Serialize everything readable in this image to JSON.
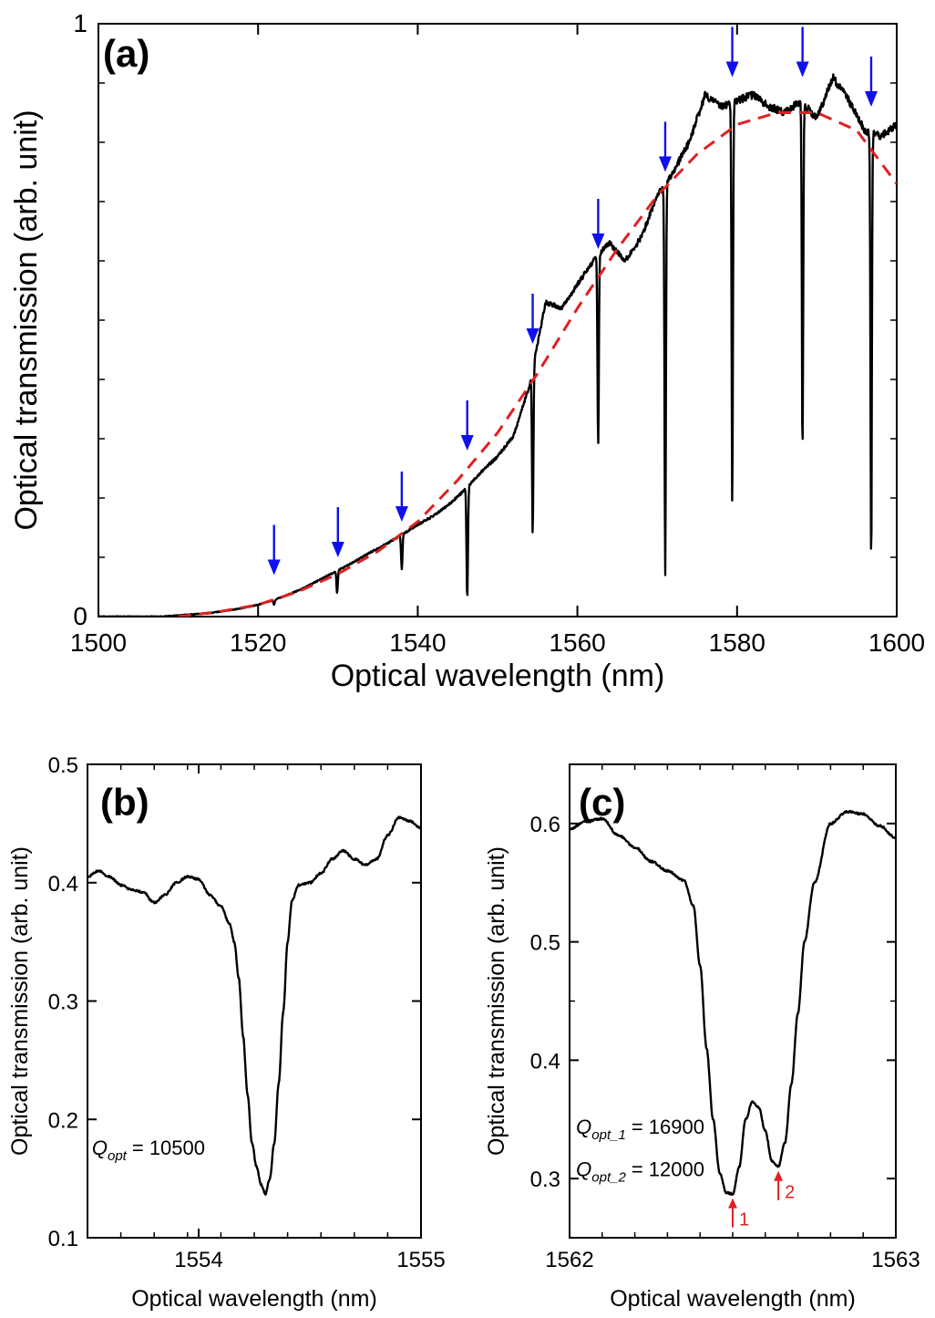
{
  "chart_data": [
    {
      "panel": "(a)",
      "type": "line",
      "xlabel": "Optical wavelength (nm)",
      "ylabel": "Optical transmission (arb. unit)",
      "xlim": [
        1500,
        1600
      ],
      "ylim": [
        0,
        1
      ],
      "x_ticks": [
        1500,
        1520,
        1540,
        1560,
        1580,
        1600
      ],
      "y_ticks": [
        0,
        1
      ],
      "grid": false,
      "series": [
        {
          "color": "#000000",
          "style": "solid",
          "x": [
            1500,
            1505,
            1508,
            1510,
            1512,
            1514,
            1516,
            1518,
            1520,
            1522,
            1524,
            1526,
            1528,
            1530,
            1532,
            1534,
            1536,
            1538,
            1540,
            1542,
            1544,
            1546,
            1548,
            1550,
            1552,
            1554,
            1556,
            1558,
            1560,
            1562,
            1564,
            1566,
            1568,
            1570,
            1572,
            1574,
            1576,
            1578,
            1580,
            1582,
            1584,
            1586,
            1588,
            1590,
            1592,
            1594,
            1596,
            1598,
            1600
          ],
          "y": [
            0.0,
            0.0,
            0.0,
            0.002,
            0.004,
            0.006,
            0.01,
            0.014,
            0.02,
            0.028,
            0.038,
            0.05,
            0.064,
            0.078,
            0.092,
            0.108,
            0.122,
            0.138,
            0.155,
            0.17,
            0.19,
            0.215,
            0.245,
            0.27,
            0.305,
            0.39,
            0.53,
            0.52,
            0.56,
            0.6,
            0.63,
            0.6,
            0.64,
            0.71,
            0.75,
            0.8,
            0.88,
            0.86,
            0.87,
            0.88,
            0.86,
            0.85,
            0.87,
            0.84,
            0.91,
            0.87,
            0.82,
            0.81,
            0.83
          ]
        },
        {
          "color": "#e02020",
          "style": "dashed",
          "x": [
            1510,
            1515,
            1520,
            1525,
            1530,
            1535,
            1540,
            1545,
            1550,
            1555,
            1560,
            1565,
            1570,
            1575,
            1580,
            1585,
            1590,
            1595,
            1600
          ],
          "y": [
            0.0,
            0.008,
            0.02,
            0.042,
            0.072,
            0.11,
            0.16,
            0.23,
            0.31,
            0.41,
            0.52,
            0.62,
            0.71,
            0.78,
            0.83,
            0.85,
            0.85,
            0.82,
            0.73
          ]
        }
      ],
      "dips": [
        {
          "x": 1522.0,
          "y": 0.02
        },
        {
          "x": 1529.9,
          "y": 0.04
        },
        {
          "x": 1538.0,
          "y": 0.08
        },
        {
          "x": 1546.2,
          "y": 0.03
        },
        {
          "x": 1554.4,
          "y": 0.14
        },
        {
          "x": 1562.6,
          "y": 0.29
        },
        {
          "x": 1571.0,
          "y": 0.07
        },
        {
          "x": 1579.4,
          "y": 0.19
        },
        {
          "x": 1588.2,
          "y": 0.28
        },
        {
          "x": 1596.8,
          "y": 0.09
        }
      ],
      "annotations": [
        {
          "type": "arrow",
          "color": "#1010ee",
          "x": 1522.0,
          "y_tip": 0.07
        },
        {
          "type": "arrow",
          "color": "#1010ee",
          "x": 1530.0,
          "y_tip": 0.1
        },
        {
          "type": "arrow",
          "color": "#1010ee",
          "x": 1538.0,
          "y_tip": 0.16
        },
        {
          "type": "arrow",
          "color": "#1010ee",
          "x": 1546.2,
          "y_tip": 0.28
        },
        {
          "type": "arrow",
          "color": "#1010ee",
          "x": 1554.4,
          "y_tip": 0.46
        },
        {
          "type": "arrow",
          "color": "#1010ee",
          "x": 1562.6,
          "y_tip": 0.62
        },
        {
          "type": "arrow",
          "color": "#1010ee",
          "x": 1571.0,
          "y_tip": 0.75
        },
        {
          "type": "arrow",
          "color": "#1010ee",
          "x": 1579.4,
          "y_tip": 0.91
        },
        {
          "type": "arrow",
          "color": "#1010ee",
          "x": 1588.2,
          "y_tip": 0.91
        },
        {
          "type": "arrow",
          "color": "#1010ee",
          "x": 1596.8,
          "y_tip": 0.86
        }
      ]
    },
    {
      "panel": "(b)",
      "type": "line",
      "xlabel": "Optical wavelength (nm)",
      "ylabel": "Optical transmission (arb. unit)",
      "xlim": [
        1553.5,
        1555
      ],
      "ylim": [
        0.1,
        0.5
      ],
      "x_ticks": [
        1554,
        1555
      ],
      "y_ticks": [
        0.1,
        0.2,
        0.3,
        0.4,
        0.5
      ],
      "grid": false,
      "series": [
        {
          "color": "#000000",
          "style": "solid",
          "x": [
            1553.5,
            1553.55,
            1553.6,
            1553.65,
            1553.7,
            1553.75,
            1553.8,
            1553.85,
            1553.9,
            1553.95,
            1554.0,
            1554.05,
            1554.1,
            1554.14,
            1554.16,
            1554.18,
            1554.2,
            1554.22,
            1554.24,
            1554.26,
            1554.28,
            1554.3,
            1554.32,
            1554.34,
            1554.36,
            1554.38,
            1554.4,
            1554.42,
            1554.45,
            1554.5,
            1554.55,
            1554.6,
            1554.65,
            1554.7,
            1554.75,
            1554.8,
            1554.85,
            1554.9,
            1554.95,
            1555.0
          ],
          "y": [
            0.405,
            0.41,
            0.405,
            0.398,
            0.394,
            0.392,
            0.383,
            0.39,
            0.4,
            0.405,
            0.403,
            0.39,
            0.38,
            0.365,
            0.35,
            0.32,
            0.27,
            0.22,
            0.18,
            0.16,
            0.145,
            0.137,
            0.15,
            0.18,
            0.23,
            0.29,
            0.35,
            0.385,
            0.398,
            0.4,
            0.408,
            0.42,
            0.427,
            0.42,
            0.415,
            0.42,
            0.44,
            0.455,
            0.452,
            0.446
          ]
        }
      ],
      "annotations": [
        {
          "type": "text",
          "label": "Q",
          "subscript": "opt",
          "value": "= 10500",
          "x": 1553.52,
          "y": 0.17
        }
      ]
    },
    {
      "panel": "(c)",
      "type": "line",
      "xlabel": "Optical wavelength (nm)",
      "ylabel": "Optical transmission (arb. unit)",
      "xlim": [
        1562,
        1563
      ],
      "ylim": [
        0.25,
        0.65
      ],
      "x_ticks": [
        1562,
        1563
      ],
      "y_ticks": [
        0.3,
        0.4,
        0.5,
        0.6
      ],
      "grid": false,
      "series": [
        {
          "color": "#000000",
          "style": "solid",
          "x": [
            1562.0,
            1562.05,
            1562.1,
            1562.15,
            1562.2,
            1562.25,
            1562.3,
            1562.35,
            1562.38,
            1562.4,
            1562.42,
            1562.44,
            1562.46,
            1562.48,
            1562.5,
            1562.52,
            1562.54,
            1562.56,
            1562.58,
            1562.6,
            1562.62,
            1562.64,
            1562.66,
            1562.68,
            1562.7,
            1562.72,
            1562.75,
            1562.8,
            1562.85,
            1562.9,
            1562.95,
            1563.0
          ],
          "y": [
            0.595,
            0.602,
            0.604,
            0.59,
            0.58,
            0.568,
            0.56,
            0.552,
            0.53,
            0.48,
            0.41,
            0.35,
            0.305,
            0.288,
            0.287,
            0.31,
            0.35,
            0.365,
            0.36,
            0.34,
            0.315,
            0.31,
            0.33,
            0.38,
            0.44,
            0.5,
            0.55,
            0.6,
            0.61,
            0.608,
            0.598,
            0.588
          ]
        }
      ],
      "annotations": [
        {
          "type": "text",
          "label": "Q",
          "subscript": "opt_1",
          "value": "= 16900",
          "x": 1562.02,
          "y": 0.338
        },
        {
          "type": "text",
          "label": "Q",
          "subscript": "opt_2",
          "value": "= 12000",
          "x": 1562.02,
          "y": 0.302
        },
        {
          "type": "arrow",
          "color": "#e02020",
          "label": "1",
          "x": 1562.5,
          "y_tip": 0.285
        },
        {
          "type": "arrow",
          "color": "#e02020",
          "label": "2",
          "x": 1562.64,
          "y_tip": 0.308
        }
      ]
    }
  ]
}
